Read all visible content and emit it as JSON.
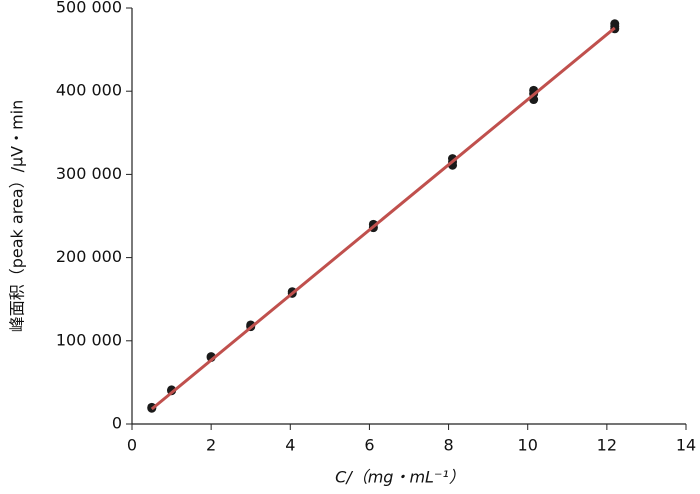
{
  "chart_data": {
    "type": "scatter",
    "x_label": "C/（mg・mL⁻¹）",
    "y_label": "峰面积（peak area）/μV・min",
    "xlim": [
      0,
      14
    ],
    "xticks": [
      0,
      2,
      4,
      6,
      8,
      10,
      12,
      14
    ],
    "ylim": [
      0,
      500000
    ],
    "yticks": [
      0,
      {
        "value": 100000,
        "label": "100 000"
      },
      {
        "value": 200000,
        "label": "200 000"
      },
      {
        "value": 300000,
        "label": "300 000"
      },
      {
        "value": 400000,
        "label": "400 000"
      },
      {
        "value": 500000,
        "label": "500 000"
      }
    ],
    "series": [
      {
        "type": "scatter",
        "color": "#1a1a1a",
        "x": [
          0.5,
          0.5,
          1,
          1,
          2,
          2,
          3,
          3,
          4.05,
          4.05,
          6.1,
          6.1,
          8.1,
          8.1,
          8.1,
          10.15,
          10.15,
          10.15,
          12.2,
          12.2,
          12.2
        ],
        "values": [
          19000,
          20000,
          40000,
          41000,
          80000,
          81000,
          117000,
          119000,
          157000,
          159000,
          236000,
          240000,
          311000,
          315000,
          319000,
          390000,
          397000,
          401000,
          475000,
          478000,
          481000
        ]
      },
      {
        "type": "line",
        "color": "#c0504d",
        "x": [
          0.5,
          12.2
        ],
        "values": [
          18000,
          476000
        ]
      }
    ]
  }
}
